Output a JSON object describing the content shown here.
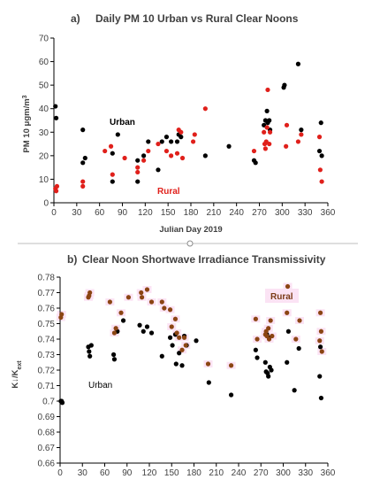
{
  "chart_data": [
    {
      "type": "scatter",
      "panel_label": "a)",
      "title": "Daily PM 10 Urban vs Rural Clear Noons",
      "xlabel": "Julian Day 2019",
      "ylabel": "PM 10 μgm/m³",
      "xlim": [
        0,
        360
      ],
      "ylim": [
        0,
        70
      ],
      "x_ticks": [
        "0",
        "30",
        "60",
        "90",
        "120",
        "150",
        "180",
        "210",
        "240",
        "270",
        "300",
        "330",
        "360"
      ],
      "y_ticks": [
        "0",
        "10",
        "20",
        "30",
        "40",
        "50",
        "60",
        "70"
      ],
      "grid": false,
      "annotations": [
        "Urban",
        "Rural"
      ],
      "series": [
        {
          "name": "Urban",
          "color": "#000000",
          "points": [
            [
              2,
              41
            ],
            [
              3,
              36
            ],
            [
              38,
              31
            ],
            [
              38,
              17
            ],
            [
              41,
              19
            ],
            [
              77,
              21
            ],
            [
              77,
              9
            ],
            [
              84,
              29
            ],
            [
              110,
              18
            ],
            [
              110,
              9
            ],
            [
              118,
              20
            ],
            [
              124,
              26
            ],
            [
              137,
              14
            ],
            [
              142,
              26
            ],
            [
              148,
              28
            ],
            [
              154,
              26
            ],
            [
              162,
              26
            ],
            [
              164,
              29
            ],
            [
              167,
              28
            ],
            [
              199,
              20
            ],
            [
              230,
              24
            ],
            [
              263,
              18
            ],
            [
              265,
              17
            ],
            [
              276,
              33
            ],
            [
              278,
              35
            ],
            [
              280,
              39
            ],
            [
              281,
              34
            ],
            [
              283,
              35
            ],
            [
              284,
              31
            ],
            [
              302,
              49
            ],
            [
              303,
              50
            ],
            [
              321,
              59
            ],
            [
              325,
              31
            ],
            [
              349,
              22
            ],
            [
              351,
              34
            ],
            [
              352,
              20
            ]
          ]
        },
        {
          "name": "Rural",
          "color": "#e0201b",
          "points": [
            [
              2,
              6
            ],
            [
              3,
              5
            ],
            [
              4,
              7
            ],
            [
              38,
              9
            ],
            [
              38,
              7
            ],
            [
              67,
              22
            ],
            [
              75,
              24
            ],
            [
              77,
              12
            ],
            [
              93,
              19
            ],
            [
              110,
              15
            ],
            [
              110,
              13
            ],
            [
              118,
              18
            ],
            [
              124,
              22
            ],
            [
              137,
              25
            ],
            [
              148,
              22
            ],
            [
              154,
              20
            ],
            [
              162,
              21
            ],
            [
              164,
              31
            ],
            [
              167,
              30
            ],
            [
              169,
              19
            ],
            [
              183,
              26
            ],
            [
              185,
              29
            ],
            [
              199,
              40
            ],
            [
              263,
              22
            ],
            [
              276,
              30
            ],
            [
              277,
              25
            ],
            [
              278,
              23
            ],
            [
              279,
              26
            ],
            [
              280,
              32
            ],
            [
              281,
              48
            ],
            [
              283,
              25
            ],
            [
              284,
              30
            ],
            [
              305,
              24
            ],
            [
              306,
              33
            ],
            [
              321,
              26
            ],
            [
              325,
              29
            ],
            [
              349,
              28
            ],
            [
              350,
              14
            ],
            [
              352,
              9
            ]
          ]
        }
      ]
    },
    {
      "type": "scatter",
      "panel_label": "b)",
      "title": "Clear Noon Shortwave Irradiance Transmissivity",
      "xlabel": "",
      "ylabel": "K↓/K_ext",
      "xlim": [
        0,
        360
      ],
      "ylim": [
        0.66,
        0.78
      ],
      "x_ticks": [
        "0",
        "30",
        "60",
        "90",
        "120",
        "150",
        "180",
        "210",
        "240",
        "270",
        "300",
        "330",
        "360"
      ],
      "y_ticks": [
        "0.66",
        "0.67",
        "0.68",
        "0.69",
        "0.7",
        "0.71",
        "0.72",
        "0.73",
        "0.74",
        "0.75",
        "0.76",
        "0.77",
        "0.78"
      ],
      "grid": false,
      "annotations": [
        "Rural",
        "Urban"
      ],
      "series": [
        {
          "name": "Urban",
          "color": "#000000",
          "points": [
            [
              1,
              0.7
            ],
            [
              2,
              0.7
            ],
            [
              3,
              0.699
            ],
            [
              38,
              0.735
            ],
            [
              39,
              0.732
            ],
            [
              40,
              0.729
            ],
            [
              42,
              0.736
            ],
            [
              72,
              0.73
            ],
            [
              73,
              0.727
            ],
            [
              77,
              0.745
            ],
            [
              85,
              0.752
            ],
            [
              107,
              0.749
            ],
            [
              112,
              0.745
            ],
            [
              117,
              0.748
            ],
            [
              123,
              0.744
            ],
            [
              137,
              0.729
            ],
            [
              148,
              0.741
            ],
            [
              151,
              0.736
            ],
            [
              155,
              0.743
            ],
            [
              156,
              0.724
            ],
            [
              160,
              0.731
            ],
            [
              164,
              0.723
            ],
            [
              167,
              0.742
            ],
            [
              170,
              0.736
            ],
            [
              183,
              0.739
            ],
            [
              200,
              0.712
            ],
            [
              230,
              0.704
            ],
            [
              263,
              0.733
            ],
            [
              265,
              0.728
            ],
            [
              276,
              0.725
            ],
            [
              277,
              0.719
            ],
            [
              278,
              0.743
            ],
            [
              279,
              0.718
            ],
            [
              280,
              0.716
            ],
            [
              281,
              0.741
            ],
            [
              282,
              0.722
            ],
            [
              284,
              0.72
            ],
            [
              305,
              0.725
            ],
            [
              307,
              0.745
            ],
            [
              315,
              0.707
            ],
            [
              321,
              0.734
            ],
            [
              349,
              0.716
            ],
            [
              350,
              0.735
            ],
            [
              351,
              0.702
            ]
          ]
        },
        {
          "name": "Rural",
          "color": "#8b4513",
          "points": [
            [
              1,
              0.754
            ],
            [
              2,
              0.756
            ],
            [
              38,
              0.767
            ],
            [
              39,
              0.768
            ],
            [
              40,
              0.77
            ],
            [
              67,
              0.764
            ],
            [
              73,
              0.744
            ],
            [
              75,
              0.747
            ],
            [
              82,
              0.757
            ],
            [
              92,
              0.767
            ],
            [
              109,
              0.77
            ],
            [
              110,
              0.767
            ],
            [
              117,
              0.772
            ],
            [
              123,
              0.764
            ],
            [
              137,
              0.764
            ],
            [
              140,
              0.76
            ],
            [
              148,
              0.759
            ],
            [
              150,
              0.748
            ],
            [
              155,
              0.753
            ],
            [
              157,
              0.744
            ],
            [
              160,
              0.741
            ],
            [
              164,
              0.733
            ],
            [
              167,
              0.741
            ],
            [
              169,
              0.736
            ],
            [
              199,
              0.724
            ],
            [
              230,
              0.723
            ],
            [
              263,
              0.753
            ],
            [
              265,
              0.74
            ],
            [
              276,
              0.743
            ],
            [
              277,
              0.745
            ],
            [
              278,
              0.742
            ],
            [
              280,
              0.747
            ],
            [
              281,
              0.74
            ],
            [
              283,
              0.752
            ],
            [
              285,
              0.742
            ],
            [
              305,
              0.757
            ],
            [
              306,
              0.774
            ],
            [
              317,
              0.74
            ],
            [
              322,
              0.752
            ],
            [
              349,
              0.739
            ],
            [
              350,
              0.757
            ],
            [
              351,
              0.745
            ],
            [
              352,
              0.732
            ]
          ]
        }
      ]
    }
  ]
}
